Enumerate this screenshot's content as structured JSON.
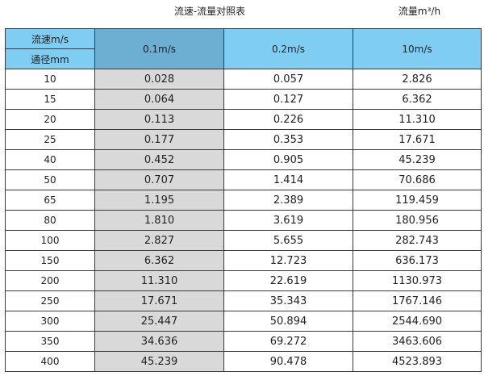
{
  "title": "流速-流量对照表",
  "unit_label": "流量m³/h",
  "header": {
    "velocity_label": "流速m/s",
    "diameter_label": "通径mm",
    "columns": [
      "0.1m/s",
      "0.2m/s",
      "10m/s"
    ]
  },
  "colors": {
    "header_blue": "#7fcdf3",
    "header_highlight": "#6cafd3",
    "highlight_column": "#d9d9d9"
  },
  "rows": [
    {
      "dn": "10",
      "v": [
        "0.028",
        "0.057",
        "2.826"
      ]
    },
    {
      "dn": "15",
      "v": [
        "0.064",
        "0.127",
        "6.362"
      ]
    },
    {
      "dn": "20",
      "v": [
        "0.113",
        "0.226",
        "11.310"
      ]
    },
    {
      "dn": "25",
      "v": [
        "0.177",
        "0.353",
        "17.671"
      ]
    },
    {
      "dn": "40",
      "v": [
        "0.452",
        "0.905",
        "45.239"
      ]
    },
    {
      "dn": "50",
      "v": [
        "0.707",
        "1.414",
        "70.686"
      ]
    },
    {
      "dn": "65",
      "v": [
        "1.195",
        "2.389",
        "119.459"
      ]
    },
    {
      "dn": "80",
      "v": [
        "1.810",
        "3.619",
        "180.956"
      ]
    },
    {
      "dn": "100",
      "v": [
        "2.827",
        "5.655",
        "282.743"
      ]
    },
    {
      "dn": "150",
      "v": [
        "6.362",
        "12.723",
        "636.173"
      ]
    },
    {
      "dn": "200",
      "v": [
        "11.310",
        "22.619",
        "1130.973"
      ]
    },
    {
      "dn": "250",
      "v": [
        "17.671",
        "35.343",
        "1767.146"
      ]
    },
    {
      "dn": "300",
      "v": [
        "25.447",
        "50.894",
        "2544.690"
      ]
    },
    {
      "dn": "350",
      "v": [
        "34.636",
        "69.272",
        "3463.606"
      ]
    },
    {
      "dn": "400",
      "v": [
        "45.239",
        "90.478",
        "4523.893"
      ]
    }
  ]
}
